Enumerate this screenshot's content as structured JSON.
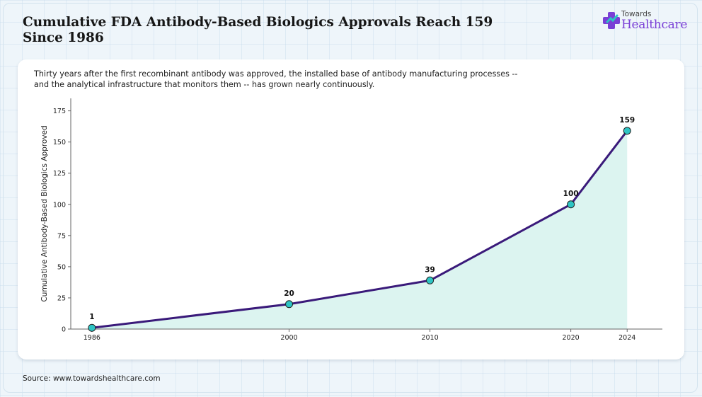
{
  "header": {
    "title": "Cumulative FDA Antibody-Based Biologics Approvals Reach 159 Since 1986",
    "subtitle": "Thirty years after the first recombinant antibody was approved, the installed base of antibody manufacturing processes -- and the analytical infrastructure that monitors them -- has grown nearly continuously."
  },
  "logo": {
    "line1": "Towards",
    "line2": "Healthcare"
  },
  "footer": {
    "source": "Source: www.towardshealthcare.com"
  },
  "chart_data": {
    "type": "line",
    "x": [
      1986,
      2000,
      2010,
      2020,
      2024
    ],
    "series": [
      {
        "values": [
          1,
          20,
          39,
          100,
          159
        ]
      }
    ],
    "data_labels": [
      "1",
      "20",
      "39",
      "100",
      "159"
    ],
    "xlabel": "",
    "ylabel": "Cumulative Antibody-Based Biologics Approved",
    "xticks": [
      1986,
      2000,
      2010,
      2020,
      2024
    ],
    "yticks": [
      0,
      25,
      50,
      75,
      100,
      125,
      150,
      175
    ],
    "ylim": [
      0,
      185
    ],
    "grid": false,
    "colors": {
      "line": "#3a1a7a",
      "marker": "#2ec4c4",
      "fill": "#dcf4f0"
    }
  }
}
